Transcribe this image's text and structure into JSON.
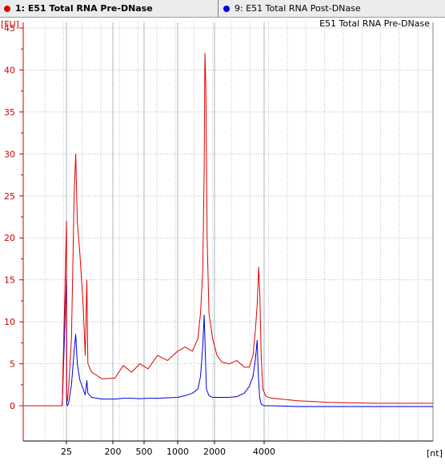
{
  "tabs": [
    {
      "label": "1: E51 Total RNA Pre-DNase",
      "color": "#e00000",
      "active": true
    },
    {
      "label": "9: E51 Total RNA Post-DNase",
      "color": "#0000e0",
      "active": false
    }
  ],
  "chart_data": {
    "type": "line",
    "title": "E51 Total RNA Pre-DNase",
    "ylabel": "[FU]",
    "xlabel": "[nt]",
    "ylim": [
      -4.5,
      46
    ],
    "yticks": [
      0,
      5,
      10,
      15,
      20,
      25,
      30,
      35,
      40,
      45
    ],
    "ytick_labels": [
      "0",
      "5",
      "10",
      "15",
      "20",
      "25",
      "30",
      "35",
      "40",
      "45"
    ],
    "xticks": [
      25,
      200,
      500,
      1000,
      2000,
      4000
    ],
    "xtick_labels": [
      "25",
      "200",
      "500",
      "1000",
      "2000",
      "4000"
    ],
    "grid": true,
    "series": [
      {
        "name": "1: E51 Total RNA Pre-DNase",
        "color": "#e00000",
        "points": [
          [
            23,
            0
          ],
          [
            24.8,
            0
          ],
          [
            25.4,
            22
          ],
          [
            26,
            1
          ],
          [
            28,
            0.5
          ],
          [
            33,
            2
          ],
          [
            44,
            8
          ],
          [
            54,
            25
          ],
          [
            60,
            30
          ],
          [
            66,
            22
          ],
          [
            76,
            18
          ],
          [
            88,
            12
          ],
          [
            96,
            6
          ],
          [
            102,
            15
          ],
          [
            106,
            5
          ],
          [
            120,
            4
          ],
          [
            160,
            3.2
          ],
          [
            220,
            3.3
          ],
          [
            300,
            4.8
          ],
          [
            380,
            4
          ],
          [
            460,
            5
          ],
          [
            560,
            4.4
          ],
          [
            700,
            6
          ],
          [
            850,
            5.4
          ],
          [
            1000,
            6.5
          ],
          [
            1200,
            7
          ],
          [
            1400,
            6.5
          ],
          [
            1550,
            8
          ],
          [
            1620,
            11
          ],
          [
            1680,
            16
          ],
          [
            1720,
            28
          ],
          [
            1740,
            42
          ],
          [
            1765,
            38
          ],
          [
            1800,
            20
          ],
          [
            1850,
            11
          ],
          [
            1950,
            8
          ],
          [
            2100,
            6
          ],
          [
            2300,
            5.2
          ],
          [
            2600,
            5
          ],
          [
            2900,
            5.4
          ],
          [
            3200,
            4.6
          ],
          [
            3400,
            4.6
          ],
          [
            3550,
            6
          ],
          [
            3650,
            9
          ],
          [
            3720,
            12
          ],
          [
            3780,
            16.5
          ],
          [
            3830,
            13
          ],
          [
            3880,
            6
          ],
          [
            3950,
            2
          ],
          [
            4050,
            1.2
          ],
          [
            4150,
            1
          ],
          [
            4300,
            0.9
          ],
          [
            4600,
            0.8
          ],
          [
            5200,
            0.6
          ],
          [
            6300,
            0.4
          ],
          [
            8000,
            0.3
          ],
          [
            10000,
            0.3
          ]
        ]
      },
      {
        "name": "9: E51 Total RNA Post-DNase",
        "color": "#0000e0",
        "points": [
          [
            23,
            0
          ],
          [
            24.8,
            0
          ],
          [
            25.4,
            15.5
          ],
          [
            26,
            0.5
          ],
          [
            28,
            0
          ],
          [
            33,
            0.3
          ],
          [
            44,
            2.5
          ],
          [
            54,
            6.5
          ],
          [
            60,
            8.5
          ],
          [
            66,
            5
          ],
          [
            76,
            3
          ],
          [
            88,
            2
          ],
          [
            96,
            1.3
          ],
          [
            102,
            3
          ],
          [
            106,
            1.5
          ],
          [
            120,
            1
          ],
          [
            160,
            0.8
          ],
          [
            220,
            0.8
          ],
          [
            300,
            0.9
          ],
          [
            380,
            0.9
          ],
          [
            460,
            0.85
          ],
          [
            560,
            0.9
          ],
          [
            700,
            0.9
          ],
          [
            850,
            0.95
          ],
          [
            1000,
            1
          ],
          [
            1200,
            1.2
          ],
          [
            1400,
            1.5
          ],
          [
            1550,
            2
          ],
          [
            1620,
            3.5
          ],
          [
            1680,
            7
          ],
          [
            1720,
            10.8
          ],
          [
            1745,
            7
          ],
          [
            1780,
            2
          ],
          [
            1850,
            1.2
          ],
          [
            1950,
            1
          ],
          [
            2100,
            1
          ],
          [
            2300,
            1
          ],
          [
            2600,
            1
          ],
          [
            2900,
            1.1
          ],
          [
            3200,
            1.5
          ],
          [
            3400,
            2.3
          ],
          [
            3550,
            3.5
          ],
          [
            3650,
            5.5
          ],
          [
            3720,
            7.8
          ],
          [
            3760,
            4
          ],
          [
            3820,
            1
          ],
          [
            3880,
            0.2
          ],
          [
            4000,
            0
          ],
          [
            4300,
            0
          ],
          [
            5200,
            -0.1
          ],
          [
            6300,
            -0.1
          ],
          [
            8000,
            -0.1
          ],
          [
            10000,
            -0.1
          ]
        ]
      }
    ]
  }
}
